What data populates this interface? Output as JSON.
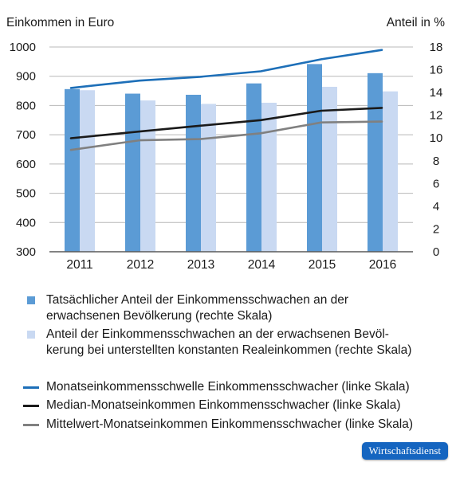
{
  "chart_data": {
    "type": "bar",
    "categories": [
      "2011",
      "2012",
      "2013",
      "2014",
      "2015",
      "2016"
    ],
    "left_axis": {
      "label": "Einkommen in Euro",
      "ylim": [
        300,
        1000
      ],
      "ticks": [
        "300",
        "400",
        "500",
        "600",
        "700",
        "800",
        "900",
        "1000"
      ]
    },
    "right_axis": {
      "label": "Anteil in %",
      "ylim": [
        0,
        18
      ],
      "ticks": [
        "0",
        "2",
        "4",
        "6",
        "8",
        "10",
        "12",
        "14",
        "16",
        "18"
      ]
    },
    "grid": true,
    "bar_series": [
      {
        "name": "Tatsächlicher Anteil der Einkommensschwachen an der erwachsenen Bevölkerung (rechte Skala)",
        "axis": "right",
        "color": "#5b9bd5",
        "values": [
          14.3,
          13.9,
          13.8,
          14.8,
          16.5,
          15.7
        ]
      },
      {
        "name": "Anteil der Einkommensschwachen an der erwachsenen Bevölkerung bei unterstellten konstanten Realeinkommen (rechte Skala)",
        "axis": "right",
        "color": "#c9d9f2",
        "values": [
          14.2,
          13.3,
          13.0,
          13.1,
          14.5,
          14.1
        ]
      }
    ],
    "line_series": [
      {
        "name": "Monatseinkommensschwelle Einkommensschwacher (linke Skala)",
        "axis": "left",
        "color": "#1d6fb8",
        "values": [
          860,
          885,
          898,
          917,
          958,
          990
        ]
      },
      {
        "name": "Median-Monatseinkommen Einkommensschwacher (linke Skala)",
        "axis": "left",
        "color": "#1a1a1a",
        "values": [
          688,
          711,
          731,
          750,
          782,
          792
        ]
      },
      {
        "name": "Mittelwert-Monatseinkommen Einkommensschwacher (linke Skala)",
        "axis": "left",
        "color": "#808080",
        "values": [
          648,
          681,
          685,
          705,
          742,
          745
        ]
      }
    ],
    "legend_placement": "bottom"
  },
  "legend": {
    "bars": [
      {
        "text": "Tatsächlicher Anteil der Einkommensschwachen an der\nerwachsenen Bevölkerung (rechte Skala)",
        "color": "#5b9bd5"
      },
      {
        "text": "Anteil der Einkommensschwachen an der erwachsenen Bevöl-\nkerung bei unterstellten konstanten Realeinkommen (rechte Skala)",
        "color": "#c9d9f2"
      }
    ],
    "lines": [
      {
        "text": "Monatseinkommensschwelle Einkommensschwacher (linke Skala)",
        "color": "#1d6fb8"
      },
      {
        "text": "Median-Monatseinkommen Einkommensschwacher (linke Skala)",
        "color": "#1a1a1a"
      },
      {
        "text": "Mittelwert-Monatseinkommen Einkommensschwacher (linke Skala)",
        "color": "#808080"
      }
    ]
  },
  "badge": {
    "text": "Wirtschaftsdienst"
  }
}
